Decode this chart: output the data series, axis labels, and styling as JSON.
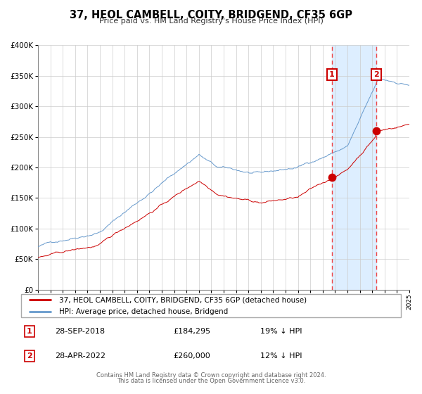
{
  "title": "37, HEOL CAMBELL, COITY, BRIDGEND, CF35 6GP",
  "subtitle": "Price paid vs. HM Land Registry's House Price Index (HPI)",
  "legend_property": "37, HEOL CAMBELL, COITY, BRIDGEND, CF35 6GP (detached house)",
  "legend_hpi": "HPI: Average price, detached house, Bridgend",
  "color_property": "#cc0000",
  "color_hpi": "#6699cc",
  "color_shade": "#ddeeff",
  "annotation1_date": "28-SEP-2018",
  "annotation1_price": "£184,295",
  "annotation1_hpi": "19% ↓ HPI",
  "annotation1_year": 2018.75,
  "annotation1_value": 184295,
  "annotation2_date": "28-APR-2022",
  "annotation2_price": "£260,000",
  "annotation2_hpi": "12% ↓ HPI",
  "annotation2_year": 2022.33,
  "annotation2_value": 260000,
  "ylim_max": 400000,
  "xmin": 1995,
  "xmax": 2025,
  "footer1": "Contains HM Land Registry data © Crown copyright and database right 2024.",
  "footer2": "This data is licensed under the Open Government Licence v3.0."
}
